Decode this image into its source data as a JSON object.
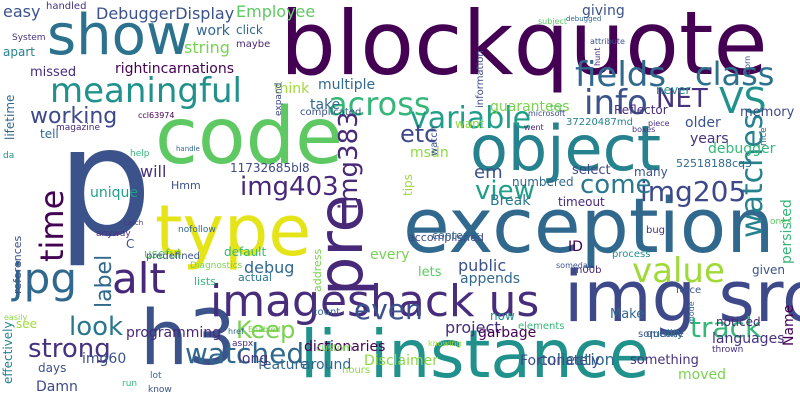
{
  "words": [
    {
      "text": "blockquote",
      "color": "#440154"
    },
    {
      "text": "exception",
      "color": "#31688e"
    },
    {
      "text": "p",
      "color": "#3b528b"
    },
    {
      "text": "code",
      "color": "#5ec962"
    },
    {
      "text": "object",
      "color": "#26828e"
    },
    {
      "text": "type",
      "color": "#e5e419"
    },
    {
      "text": "show",
      "color": "#2c728e"
    },
    {
      "text": "img src",
      "color": "#3e4989"
    },
    {
      "text": "instance",
      "color": "#21918c"
    },
    {
      "text": "h3",
      "color": "#3b528b"
    },
    {
      "text": "li",
      "color": "#21918c"
    },
    {
      "text": "pre",
      "color": "#482878"
    },
    {
      "text": "imageshack us",
      "color": "#472d7b"
    },
    {
      "text": "jpg",
      "color": "#31688e"
    },
    {
      "text": "alt",
      "color": "#482878"
    },
    {
      "text": "meaningful",
      "color": "#21918c"
    },
    {
      "text": "across",
      "color": "#35b779"
    },
    {
      "text": "variable",
      "color": "#1f9e89"
    },
    {
      "text": "fields",
      "color": "#31688e"
    },
    {
      "text": "class",
      "color": "#2c728e"
    },
    {
      "text": "VS",
      "color": "#21918c"
    },
    {
      "text": "info",
      "color": "#3b528b"
    },
    {
      "text": "NET",
      "color": "#46327e"
    },
    {
      "text": "watches",
      "color": "#26828e"
    },
    {
      "text": "value",
      "color": "#a0da39"
    },
    {
      "text": "img205",
      "color": "#3e4989"
    },
    {
      "text": "come",
      "color": "#2a788e"
    },
    {
      "text": "view",
      "color": "#1f9e89"
    },
    {
      "text": "time",
      "color": "#440154"
    },
    {
      "text": "label",
      "color": "#31688e"
    },
    {
      "text": "img403",
      "color": "#482878"
    },
    {
      "text": "img383",
      "color": "#482878"
    },
    {
      "text": "etc",
      "color": "#3e4989"
    },
    {
      "text": "even",
      "color": "#3b528b"
    },
    {
      "text": "track",
      "color": "#35b779"
    },
    {
      "text": "Keep",
      "color": "#7ad151"
    },
    {
      "text": "watched",
      "color": "#31688e"
    },
    {
      "text": "look",
      "color": "#2a788e"
    },
    {
      "text": "strong",
      "color": "#46327e"
    },
    {
      "text": "working",
      "color": "#3e4989"
    },
    {
      "text": "DebuggerDisplay",
      "color": "#3b528b"
    },
    {
      "text": "Employee",
      "color": "#5ec962"
    },
    {
      "text": "string",
      "color": "#7ad151"
    },
    {
      "text": "rightincarnations",
      "color": "#440154"
    },
    {
      "text": "missed",
      "color": "#472d7b"
    },
    {
      "text": "easy",
      "color": "#3b528b"
    },
    {
      "text": "work",
      "color": "#31688e"
    },
    {
      "text": "giving",
      "color": "#3b528b"
    },
    {
      "text": "memory",
      "color": "#3e4989"
    },
    {
      "text": "Reflector",
      "color": "#472d7b"
    },
    {
      "text": "multiple",
      "color": "#31688e"
    },
    {
      "text": "think",
      "color": "#a0da39"
    },
    {
      "text": "take",
      "color": "#31688e"
    },
    {
      "text": "guarantees",
      "color": "#7ad151"
    },
    {
      "text": "37220487md",
      "color": "#26828e"
    },
    {
      "text": "older",
      "color": "#3b528b"
    },
    {
      "text": "years",
      "color": "#46327e"
    },
    {
      "text": "debugger",
      "color": "#35b779"
    },
    {
      "text": "52518188cq3",
      "color": "#31688e"
    },
    {
      "text": "persisted",
      "color": "#35b779"
    },
    {
      "text": "Name",
      "color": "#440154"
    },
    {
      "text": "11732685bl8",
      "color": "#3e4989"
    },
    {
      "text": "msdn",
      "color": "#8fd744"
    },
    {
      "text": "em",
      "color": "#3b528b"
    },
    {
      "text": "will",
      "color": "#46327e"
    },
    {
      "text": "Hmm",
      "color": "#3b528b"
    },
    {
      "text": "unique",
      "color": "#1f9e89"
    },
    {
      "text": "Break",
      "color": "#2a788e"
    },
    {
      "text": "numbered",
      "color": "#31688e"
    },
    {
      "text": "timeout",
      "color": "#482878"
    },
    {
      "text": "many",
      "color": "#3b528b"
    },
    {
      "text": "select",
      "color": "#3e4989"
    },
    {
      "text": "debug",
      "color": "#31688e"
    },
    {
      "text": "default",
      "color": "#35b779"
    },
    {
      "text": "public",
      "color": "#3b528b"
    },
    {
      "text": "every",
      "color": "#7ad151"
    },
    {
      "text": "lets",
      "color": "#5ec962"
    },
    {
      "text": "appends",
      "color": "#31688e"
    },
    {
      "text": "ID",
      "color": "#440154"
    },
    {
      "text": "given",
      "color": "#3b528b"
    },
    {
      "text": "languages",
      "color": "#46327e"
    },
    {
      "text": "noticed",
      "color": "#482878"
    },
    {
      "text": "Make",
      "color": "#31688e"
    },
    {
      "text": "quality",
      "color": "#2a788e"
    },
    {
      "text": "project",
      "color": "#472d7b"
    },
    {
      "text": "garbage",
      "color": "#440154"
    },
    {
      "text": "collection",
      "color": "#31688e"
    },
    {
      "text": "something",
      "color": "#46327e"
    },
    {
      "text": "moved",
      "color": "#7ad151"
    },
    {
      "text": "Fortunately",
      "color": "#3e4989"
    },
    {
      "text": "dictionaries",
      "color": "#440154"
    },
    {
      "text": "Disclaimer",
      "color": "#8fd744"
    },
    {
      "text": "around",
      "color": "#31688e"
    },
    {
      "text": "feature",
      "color": "#31688e"
    },
    {
      "text": "long",
      "color": "#46327e"
    },
    {
      "text": "programming",
      "color": "#482878"
    },
    {
      "text": "Damn",
      "color": "#3e4989"
    },
    {
      "text": "days",
      "color": "#3b528b"
    },
    {
      "text": "img60",
      "color": "#3b528b"
    },
    {
      "text": "effectively",
      "color": "#26828e"
    },
    {
      "text": "references",
      "color": "#3b528b"
    },
    {
      "text": "lifetime",
      "color": "#31688e"
    },
    {
      "text": "apart",
      "color": "#26828e"
    },
    {
      "text": "alt",
      "color": "#482878"
    },
    {
      "text": "tell",
      "color": "#31688e"
    },
    {
      "text": "accomplished",
      "color": "#3e4989"
    },
    {
      "text": "address",
      "color": "#7ad151"
    },
    {
      "text": "useful",
      "color": "#5ec962"
    },
    {
      "text": "lists",
      "color": "#35b779"
    },
    {
      "text": "predefined",
      "color": "#3b528b"
    },
    {
      "text": "actual",
      "color": "#2a788e"
    },
    {
      "text": "now",
      "color": "#21918c"
    },
    {
      "text": "contents",
      "color": "#31688e"
    },
    {
      "text": "want",
      "color": "#8fd744"
    },
    {
      "text": "never",
      "color": "#21918c"
    },
    {
      "text": "click",
      "color": "#31688e"
    },
    {
      "text": "maybe",
      "color": "#482878"
    },
    {
      "text": "handled",
      "color": "#46327e"
    },
    {
      "text": "System",
      "color": "#46327e"
    },
    {
      "text": "see",
      "color": "#a0da39"
    },
    {
      "text": "C",
      "color": "#3b528b"
    },
    {
      "text": "custom",
      "color": "#7ad151"
    },
    {
      "text": "count",
      "color": "#31688e"
    },
    {
      "text": "elements",
      "color": "#35b779"
    },
    {
      "text": "hours",
      "color": "#8fd744"
    },
    {
      "text": "ones",
      "color": "#5ec962"
    },
    {
      "text": "bug",
      "color": "#46327e"
    },
    {
      "text": "someone",
      "color": "#3b528b"
    },
    {
      "text": "thrown",
      "color": "#46327e"
    },
    {
      "text": "process",
      "color": "#21918c"
    },
    {
      "text": "force",
      "color": "#3b528b"
    },
    {
      "text": "n00b",
      "color": "#482878"
    },
    {
      "text": "tips",
      "color": "#a0da39"
    },
    {
      "text": "watch",
      "color": "#3b528b"
    },
    {
      "text": "information",
      "color": "#3e4989"
    },
    {
      "text": "aspx",
      "color": "#472d7b"
    },
    {
      "text": "lot",
      "color": "#31688e"
    },
    {
      "text": "know",
      "color": "#3b528b"
    },
    {
      "text": "Diagnostics",
      "color": "#7ad151"
    },
    {
      "text": "complicated",
      "color": "#3b528b"
    },
    {
      "text": "nofollow",
      "color": "#31688e"
    },
    {
      "text": "anyway",
      "color": "#46327e"
    },
    {
      "text": "magazine",
      "color": "#482878"
    },
    {
      "text": "help",
      "color": "#35b779"
    },
    {
      "text": "handle",
      "color": "#31688e"
    },
    {
      "text": "subject",
      "color": "#5ec962"
    },
    {
      "text": "microsoft",
      "color": "#3e4989"
    },
    {
      "text": "piece",
      "color": "#46327e"
    },
    {
      "text": "born",
      "color": "#3b528b"
    },
    {
      "text": "hunt",
      "color": "#472d7b"
    },
    {
      "text": "debugged",
      "color": "#31688e"
    },
    {
      "text": "attribute",
      "color": "#3b528b"
    },
    {
      "text": "went",
      "color": "#482878"
    },
    {
      "text": "nice",
      "color": "#31688e"
    },
    {
      "text": "expand",
      "color": "#3e4989"
    },
    {
      "text": "ccl63974",
      "color": "#440154"
    },
    {
      "text": "someday",
      "color": "#3b528b"
    },
    {
      "text": "href",
      "color": "#31688e"
    },
    {
      "text": "easily",
      "color": "#8fd744"
    },
    {
      "text": "knowing",
      "color": "#a0da39"
    },
    {
      "text": "Enabled",
      "color": "#7ad151"
    },
    {
      "text": "catch",
      "color": "#46327e"
    },
    {
      "text": "try",
      "color": "#5ec962"
    },
    {
      "text": "mode",
      "color": "#31688e"
    },
    {
      "text": "da",
      "color": "#21918c"
    },
    {
      "text": "boxes",
      "color": "#46327e"
    },
    {
      "text": "run",
      "color": "#35b779"
    }
  ]
}
